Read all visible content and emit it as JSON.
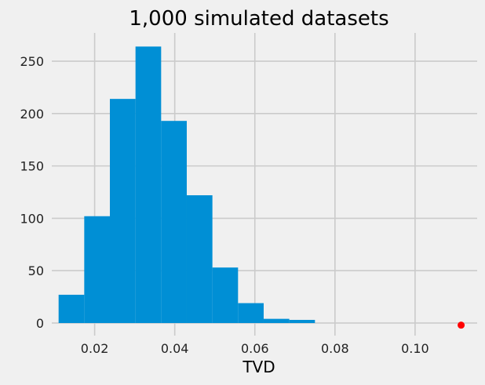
{
  "colors": {
    "background": "#f0f0f0",
    "bar": "#008fd5",
    "grid": "#cbcbcb",
    "marker": "#ff0000"
  },
  "chart_data": {
    "type": "bar",
    "title": "1,000 simulated datasets",
    "xlabel": "TVD",
    "ylabel": "",
    "grid": true,
    "xlim": [
      0.0093,
      0.1155
    ],
    "ylim": [
      -12,
      277
    ],
    "xticks": [
      0.02,
      0.04,
      0.06,
      0.08,
      0.1
    ],
    "xtick_labels": [
      "0.02",
      "0.04",
      "0.06",
      "0.08",
      "0.10"
    ],
    "yticks": [
      0,
      50,
      100,
      150,
      200,
      250
    ],
    "ytick_labels": [
      "0",
      "50",
      "100",
      "150",
      "200",
      "250"
    ],
    "bins": [
      {
        "start": 0.011,
        "end": 0.0174,
        "value": 27
      },
      {
        "start": 0.0174,
        "end": 0.0238,
        "value": 102
      },
      {
        "start": 0.0238,
        "end": 0.0302,
        "value": 214
      },
      {
        "start": 0.0302,
        "end": 0.0366,
        "value": 264
      },
      {
        "start": 0.0366,
        "end": 0.043,
        "value": 193
      },
      {
        "start": 0.043,
        "end": 0.0494,
        "value": 122
      },
      {
        "start": 0.0494,
        "end": 0.0558,
        "value": 53
      },
      {
        "start": 0.0558,
        "end": 0.0622,
        "value": 19
      },
      {
        "start": 0.0622,
        "end": 0.0686,
        "value": 4
      },
      {
        "start": 0.0686,
        "end": 0.075,
        "value": 3
      }
    ],
    "points": [
      {
        "x": 0.1115,
        "y": -2
      }
    ]
  }
}
